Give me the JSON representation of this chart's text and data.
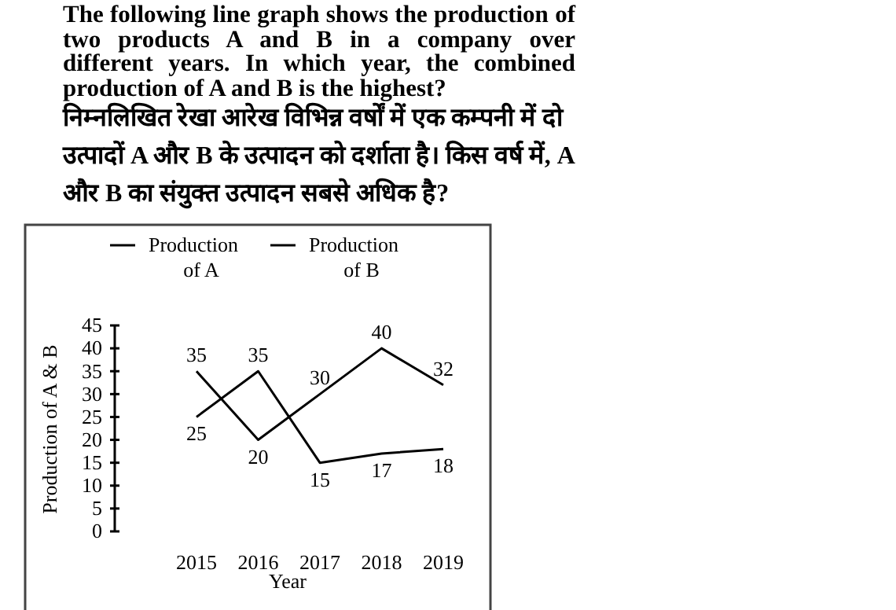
{
  "chart_data": {
    "type": "line",
    "title": "The following line graph shows the production of two products A and B in a company over different years. In which year, the combined production of A and B is the highest?",
    "subtitle": "निम्नलिखित रेखा आरेख विभिन्न वर्षों में एक कम्पनी में दो उत्पादों A और B के उत्पादन को दर्शाता है। किस वर्ष में, A और B का संयुक्त उत्पादन सबसे अधिक है?",
    "xlabel": "Year",
    "ylabel": "Production of A & B",
    "categories": [
      "2015",
      "2016",
      "2017",
      "2018",
      "2019"
    ],
    "series": [
      {
        "name": "Production of A",
        "color": "#000000",
        "values": [
          25,
          35,
          15,
          17,
          18
        ]
      },
      {
        "name": "Production of B",
        "color": "#000000",
        "values": [
          35,
          20,
          30,
          40,
          32
        ]
      }
    ],
    "ylim": [
      0,
      45
    ],
    "yticks": [
      0,
      5,
      10,
      15,
      20,
      25,
      30,
      35,
      40,
      45
    ],
    "data_labels": true,
    "legend": "top",
    "grid": false,
    "marker": "none",
    "line_style": "solid"
  }
}
